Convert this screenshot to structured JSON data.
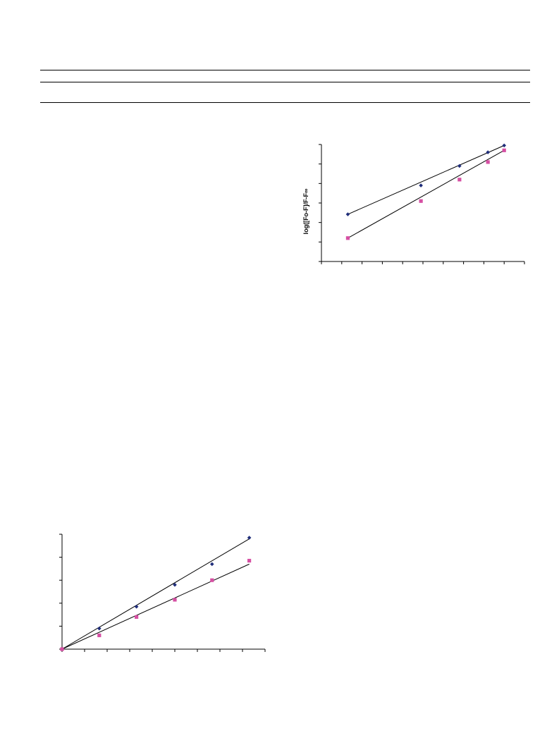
{
  "page": {
    "rules": 3
  },
  "chart_data": [
    {
      "type": "scatter",
      "title": "",
      "xlabel": "",
      "ylabel": "log([Fo-F]/F-F∞",
      "xlim": [
        0,
        10
      ],
      "ylim": [
        0,
        6
      ],
      "xticks": [
        0,
        1,
        2,
        3,
        4,
        5,
        6,
        7,
        8,
        9,
        10
      ],
      "yticks": [
        0,
        1,
        2,
        3,
        4,
        5,
        6
      ],
      "grid": false,
      "legend": "none",
      "series": [
        {
          "color": "#1f2d7a",
          "marker": "diamond",
          "points": [
            [
              1.3,
              2.42
            ],
            [
              4.9,
              3.9
            ],
            [
              6.8,
              4.9
            ],
            [
              8.2,
              5.6
            ],
            [
              9.0,
              5.95
            ]
          ],
          "fit": [
            [
              1.3,
              2.42
            ],
            [
              9.0,
              5.95
            ]
          ]
        },
        {
          "color": "#d64fa3",
          "marker": "square",
          "points": [
            [
              1.3,
              1.2
            ],
            [
              4.9,
              3.1
            ],
            [
              6.8,
              4.2
            ],
            [
              8.2,
              5.1
            ],
            [
              9.0,
              5.7
            ]
          ],
          "fit": [
            [
              1.3,
              1.2
            ],
            [
              9.0,
              5.7
            ]
          ]
        }
      ]
    },
    {
      "type": "scatter",
      "title": "",
      "xlabel": "",
      "ylabel": "",
      "xlim": [
        0,
        9
      ],
      "ylim": [
        0,
        5
      ],
      "xticks": [
        0,
        1,
        2,
        3,
        4,
        5,
        6,
        7,
        8,
        9
      ],
      "yticks": [
        0,
        1,
        2,
        3,
        4,
        5
      ],
      "grid": false,
      "legend": "none",
      "series": [
        {
          "color": "#1f2d7a",
          "marker": "diamond",
          "points": [
            [
              0,
              0
            ],
            [
              1.65,
              0.9
            ],
            [
              3.3,
              1.85
            ],
            [
              5.0,
              2.8
            ],
            [
              6.65,
              3.7
            ],
            [
              8.3,
              4.85
            ]
          ],
          "fit": [
            [
              0,
              0
            ],
            [
              8.3,
              4.8
            ]
          ]
        },
        {
          "color": "#d64fa3",
          "marker": "square",
          "points": [
            [
              0,
              0
            ],
            [
              1.65,
              0.6
            ],
            [
              3.3,
              1.4
            ],
            [
              5.0,
              2.15
            ],
            [
              6.65,
              3.0
            ],
            [
              8.3,
              3.85
            ]
          ],
          "fit": [
            [
              0,
              0
            ],
            [
              8.3,
              3.7
            ]
          ]
        }
      ]
    }
  ]
}
